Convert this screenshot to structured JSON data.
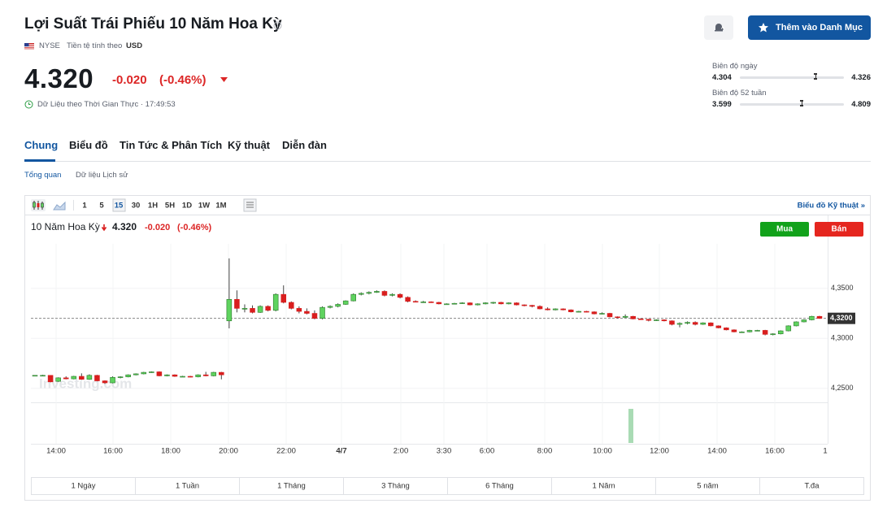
{
  "header": {
    "title": "Lợi Suất Trái Phiếu 10 Năm Hoa Kỳ",
    "exchange": "NYSE",
    "currency_label": "Tiền tệ tính theo",
    "currency": "USD",
    "add_button": "Thêm vào Danh Mục"
  },
  "quote": {
    "price": {
      "value": 4.32,
      "label": "4.320"
    },
    "change": "-0.020",
    "change_percent": "(-0.46%)",
    "realtime_label": "Dữ Liệu theo Thời Gian Thực",
    "time": "17:49:53"
  },
  "ranges": [
    {
      "label": "Biên độ ngày",
      "low": 4.304,
      "high": 4.326
    },
    {
      "label": "Biên độ 52 tuần",
      "low": 3.599,
      "high": 4.809
    }
  ],
  "tabs": [
    "Chung",
    "Biểu đồ",
    "Tin Tức & Phân Tích",
    "Kỹ thuật",
    "Diễn đàn"
  ],
  "subtabs": [
    "Tổng quan",
    "Dữ liệu Lịch sử"
  ],
  "toolbar": {
    "intervals": [
      "1",
      "5",
      "15",
      "30",
      "1H",
      "5H",
      "1D",
      "1W",
      "1M"
    ],
    "technical_link": "Biểu đồ Kỹ thuật »"
  },
  "buttons": {
    "buy": "Mua",
    "sell": "Bán"
  },
  "periods": [
    "1 Ngày",
    "1 Tuần",
    "1 Tháng",
    "3 Tháng",
    "6 Tháng",
    "1 Năm",
    "5 năm",
    "T.đa"
  ],
  "chart_data": {
    "type": "candlestick",
    "title": "10 Năm Hoa Kỳ",
    "watermark": "Investing.com",
    "up_color": "#5fd35f",
    "down_color": "#d91e1e",
    "ylim": [
      4.236,
      4.423
    ],
    "yticks": [
      {
        "value": 4.35,
        "label": "4,3500"
      },
      {
        "value": 4.3,
        "label": "4,3000"
      },
      {
        "value": 4.25,
        "label": "4,2500"
      }
    ],
    "last_price": {
      "value": 4.32,
      "label": "4,3200"
    },
    "x_labels": [
      "14:00",
      "16:00",
      "18:00",
      "20:00",
      "22:00",
      "4/7",
      "2:00",
      "3:30",
      "6:00",
      "8:00",
      "10:00",
      "12:00",
      "14:00",
      "16:00",
      "1"
    ],
    "candles": [
      [
        4.263,
        4.263,
        4.263,
        4.263
      ],
      [
        4.263,
        4.2635,
        4.2625,
        4.263
      ],
      [
        4.263,
        4.2632,
        4.256,
        4.2565
      ],
      [
        4.257,
        4.261,
        4.2565,
        4.2605
      ],
      [
        4.2605,
        4.262,
        4.259,
        4.2595
      ],
      [
        4.2595,
        4.2625,
        4.259,
        4.262
      ],
      [
        4.262,
        4.265,
        4.2585,
        4.259
      ],
      [
        4.259,
        4.264,
        4.2585,
        4.263
      ],
      [
        4.263,
        4.2635,
        4.257,
        4.2575
      ],
      [
        4.2575,
        4.258,
        4.2545,
        4.2555
      ],
      [
        4.2555,
        4.262,
        4.255,
        4.261
      ],
      [
        4.261,
        4.262,
        4.26,
        4.2615
      ],
      [
        4.2615,
        4.264,
        4.261,
        4.2635
      ],
      [
        4.2635,
        4.265,
        4.263,
        4.2645
      ],
      [
        4.2645,
        4.2665,
        4.264,
        4.266
      ],
      [
        4.266,
        4.267,
        4.2655,
        4.2665
      ],
      [
        4.2665,
        4.267,
        4.262,
        4.2625
      ],
      [
        4.2625,
        4.264,
        4.262,
        4.2635
      ],
      [
        4.2635,
        4.264,
        4.2615,
        4.262
      ],
      [
        4.262,
        4.2625,
        4.2615,
        4.262
      ],
      [
        4.262,
        4.2625,
        4.261,
        4.2615
      ],
      [
        4.2615,
        4.264,
        4.261,
        4.2635
      ],
      [
        4.2635,
        4.2665,
        4.262,
        4.2625
      ],
      [
        4.2625,
        4.2665,
        4.262,
        4.266
      ],
      [
        4.266,
        4.2665,
        4.259,
        4.2635
      ],
      [
        4.3175,
        4.38,
        4.31,
        4.339
      ],
      [
        4.339,
        4.348,
        4.326,
        4.33
      ],
      [
        4.33,
        4.334,
        4.326,
        4.33
      ],
      [
        4.33,
        4.333,
        4.325,
        4.326
      ],
      [
        4.326,
        4.333,
        4.3255,
        4.332
      ],
      [
        4.332,
        4.333,
        4.327,
        4.328
      ],
      [
        4.328,
        4.345,
        4.327,
        4.344
      ],
      [
        4.344,
        4.353,
        4.335,
        4.336
      ],
      [
        4.336,
        4.337,
        4.329,
        4.33
      ],
      [
        4.33,
        4.332,
        4.325,
        4.327
      ],
      [
        4.327,
        4.33,
        4.324,
        4.325
      ],
      [
        4.325,
        4.328,
        4.319,
        4.32
      ],
      [
        4.32,
        4.332,
        4.319,
        4.331
      ],
      [
        4.331,
        4.333,
        4.33,
        4.332
      ],
      [
        4.332,
        4.335,
        4.331,
        4.334
      ],
      [
        4.334,
        4.338,
        4.3335,
        4.3375
      ],
      [
        4.3375,
        4.345,
        4.337,
        4.344
      ],
      [
        4.344,
        4.346,
        4.343,
        4.345
      ],
      [
        4.345,
        4.347,
        4.344,
        4.346
      ],
      [
        4.346,
        4.348,
        4.3455,
        4.347
      ],
      [
        4.347,
        4.348,
        4.342,
        4.343
      ],
      [
        4.343,
        4.345,
        4.342,
        4.344
      ],
      [
        4.344,
        4.345,
        4.34,
        4.341
      ],
      [
        4.341,
        4.342,
        4.336,
        4.337
      ],
      [
        4.337,
        4.338,
        4.336,
        4.3365
      ],
      [
        4.3365,
        4.3375,
        4.3355,
        4.3365
      ],
      [
        4.3365,
        4.337,
        4.3355,
        4.336
      ],
      [
        4.336,
        4.3365,
        4.334,
        4.3345
      ],
      [
        4.3345,
        4.335,
        4.334,
        4.3345
      ],
      [
        4.3345,
        4.3355,
        4.334,
        4.335
      ],
      [
        4.335,
        4.336,
        4.3345,
        4.3355
      ],
      [
        4.3355,
        4.336,
        4.333,
        4.3335
      ],
      [
        4.3335,
        4.335,
        4.333,
        4.3345
      ],
      [
        4.3345,
        4.336,
        4.334,
        4.3355
      ],
      [
        4.3355,
        4.3365,
        4.3345,
        4.336
      ],
      [
        4.336,
        4.3365,
        4.334,
        4.3345
      ],
      [
        4.3345,
        4.336,
        4.334,
        4.3355
      ],
      [
        4.3355,
        4.336,
        4.333,
        4.3335
      ],
      [
        4.3335,
        4.334,
        4.332,
        4.333
      ],
      [
        4.333,
        4.3335,
        4.331,
        4.332
      ],
      [
        4.332,
        4.333,
        4.329,
        4.3295
      ],
      [
        4.3295,
        4.331,
        4.328,
        4.3285
      ],
      [
        4.3285,
        4.33,
        4.328,
        4.3295
      ],
      [
        4.3295,
        4.33,
        4.328,
        4.3285
      ],
      [
        4.3285,
        4.329,
        4.326,
        4.3265
      ],
      [
        4.3265,
        4.3275,
        4.326,
        4.327
      ],
      [
        4.327,
        4.3275,
        4.326,
        4.3265
      ],
      [
        4.3265,
        4.327,
        4.324,
        4.3245
      ],
      [
        4.3245,
        4.326,
        4.324,
        4.325
      ],
      [
        4.325,
        4.3255,
        4.321,
        4.3215
      ],
      [
        4.3215,
        4.322,
        4.32,
        4.321
      ],
      [
        4.321,
        4.324,
        4.3205,
        4.322
      ],
      [
        4.322,
        4.3225,
        4.319,
        4.3195
      ],
      [
        4.3195,
        4.32,
        4.3185,
        4.319
      ],
      [
        4.319,
        4.3195,
        4.317,
        4.318
      ],
      [
        4.318,
        4.319,
        4.3175,
        4.3185
      ],
      [
        4.3185,
        4.319,
        4.317,
        4.3175
      ],
      [
        4.3175,
        4.318,
        4.313,
        4.314
      ],
      [
        4.314,
        4.316,
        4.311,
        4.315
      ],
      [
        4.315,
        4.317,
        4.314,
        4.316
      ],
      [
        4.316,
        4.317,
        4.313,
        4.314
      ],
      [
        4.314,
        4.316,
        4.3135,
        4.3155
      ],
      [
        4.3155,
        4.316,
        4.312,
        4.3125
      ],
      [
        4.3125,
        4.313,
        4.31,
        4.3105
      ],
      [
        4.3105,
        4.311,
        4.308,
        4.3085
      ],
      [
        4.3085,
        4.309,
        4.306,
        4.3065
      ],
      [
        4.3065,
        4.307,
        4.306,
        4.3065
      ],
      [
        4.3065,
        4.3085,
        4.306,
        4.308
      ],
      [
        4.308,
        4.3085,
        4.3075,
        4.308
      ],
      [
        4.308,
        4.3085,
        4.303,
        4.304
      ],
      [
        4.304,
        4.305,
        4.303,
        4.3045
      ],
      [
        4.3045,
        4.308,
        4.304,
        4.3075
      ],
      [
        4.3075,
        4.313,
        4.307,
        4.3125
      ],
      [
        4.3125,
        4.317,
        4.312,
        4.3165
      ],
      [
        4.3165,
        4.319,
        4.316,
        4.3185
      ],
      [
        4.3185,
        4.3225,
        4.318,
        4.322
      ],
      [
        4.322,
        4.3225,
        4.3195,
        4.32
      ]
    ]
  }
}
